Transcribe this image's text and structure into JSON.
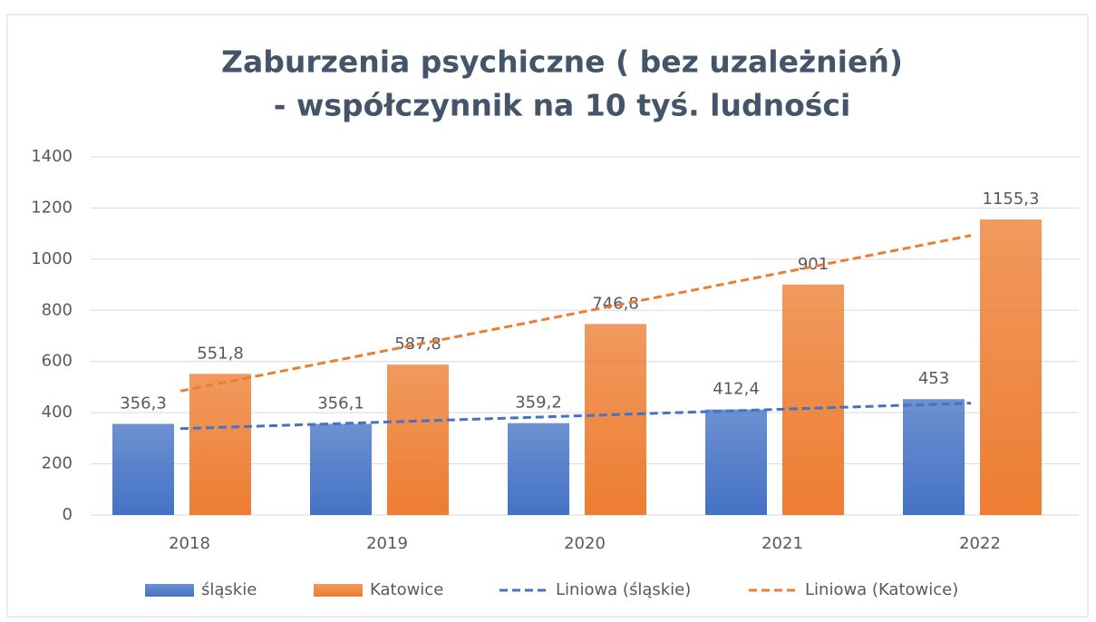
{
  "chart_data": {
    "type": "bar",
    "title_lines": [
      "Zaburzenia psychiczne ( bez uzależnień)",
      "- współczynnik na 10 tyś. ludności"
    ],
    "categories": [
      "2018",
      "2019",
      "2020",
      "2021",
      "2022"
    ],
    "series": [
      {
        "name": "śląskie",
        "color": "#4472c4",
        "values": [
          356.3,
          356.1,
          359.2,
          412.4,
          453
        ],
        "value_labels": [
          "356,3",
          "356,1",
          "359,2",
          "412,4",
          "453"
        ]
      },
      {
        "name": "Katowice",
        "color": "#ed7d31",
        "values": [
          551.8,
          587.8,
          746.8,
          901,
          1155.3
        ],
        "value_labels": [
          "551,8",
          "587,8",
          "746,8",
          "901",
          "1155,3"
        ]
      }
    ],
    "trendlines": [
      {
        "name": "Liniowa (śląskie)",
        "color": "#4472c4",
        "values": [
          337.5,
          362.4,
          387.4,
          412.4,
          437.3
        ]
      },
      {
        "name": "Liniowa (Katowice)",
        "color": "#ed7d31",
        "values": [
          484.5,
          636.5,
          788.5,
          940.6,
          1092.6
        ]
      }
    ],
    "ylim": [
      0,
      1400
    ],
    "yticks": [
      0,
      200,
      400,
      600,
      800,
      1000,
      1200,
      1400
    ],
    "grid": true,
    "legend": "bottom"
  }
}
